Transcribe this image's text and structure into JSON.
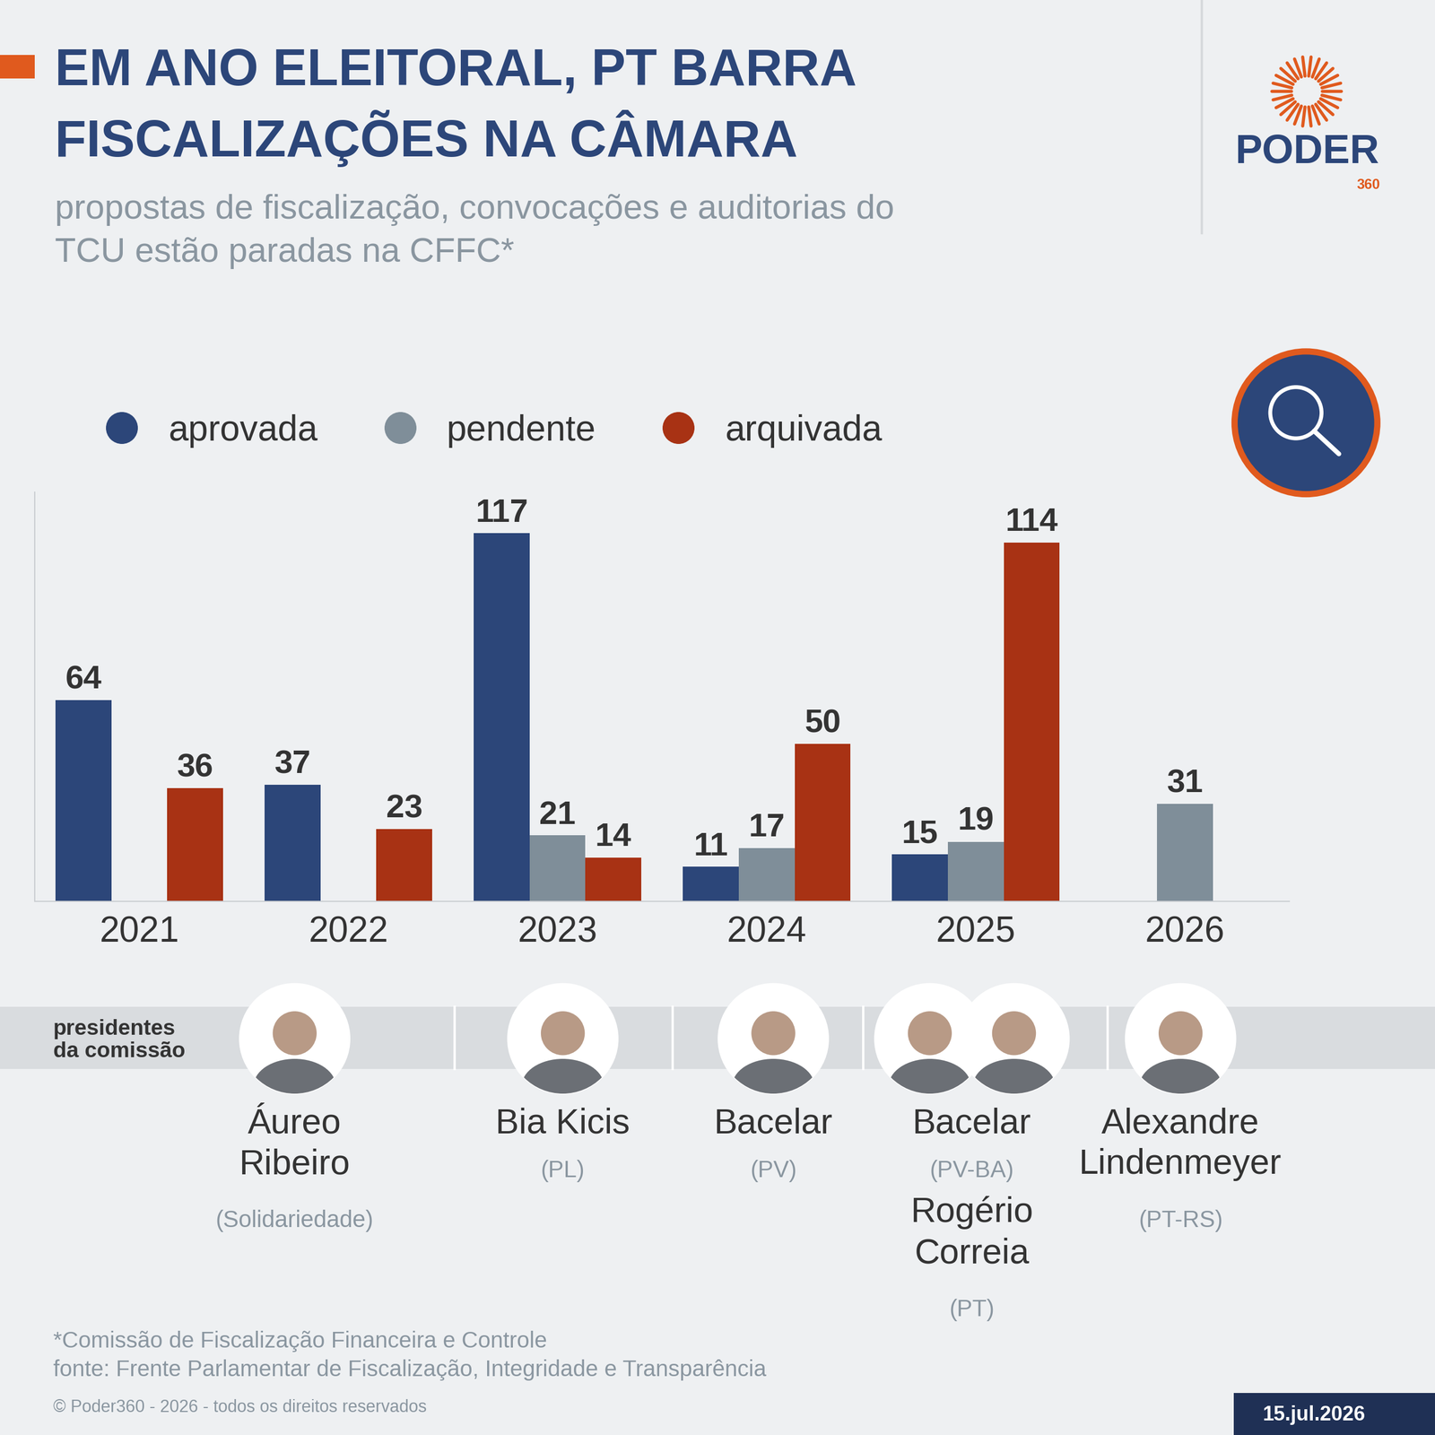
{
  "chart_data": {
    "type": "bar",
    "title": "EM ANO ELEITORAL, PT BARRA FISCALIZAÇÕES NA CÂMARA",
    "subtitle": "propostas de fiscalização, convocações e auditorias do TCU estão paradas na CFFC*",
    "categories": [
      "2021",
      "2022",
      "2023",
      "2024",
      "2025",
      "2026"
    ],
    "series": [
      {
        "name": "aprovada",
        "color": "#2c4679",
        "values": [
          64,
          37,
          117,
          11,
          15,
          null
        ]
      },
      {
        "name": "pendente",
        "color": "#7f8e99",
        "values": [
          null,
          null,
          21,
          17,
          19,
          31
        ]
      },
      {
        "name": "arquivada",
        "color": "#a83214",
        "values": [
          36,
          23,
          14,
          50,
          114,
          null
        ]
      }
    ],
    "ylim": [
      0,
      130
    ],
    "legend": "upper left",
    "data_labels": true,
    "tick_labels": "x",
    "grid": false
  },
  "presidents": {
    "label": "presidentes da comissão",
    "groups": [
      {
        "members": [
          {
            "name": "Áureo Ribeiro",
            "party": "(Solidariedade)"
          }
        ]
      },
      {
        "members": [
          {
            "name": "Bia Kicis",
            "party": "(PL)"
          }
        ]
      },
      {
        "members": [
          {
            "name": "Bacelar",
            "party": "(PV)"
          }
        ]
      },
      {
        "members": [
          {
            "name": "Bacelar",
            "party": "(PV-BA)"
          },
          {
            "name": "Rogério Correia",
            "party": "(PT)"
          }
        ]
      },
      {
        "members": [
          {
            "name": "Alexandre Lindenmeyer",
            "party": "(PT-RS)"
          }
        ]
      }
    ]
  },
  "footer": {
    "note": "*Comissão de Fiscalização Financeira e Controle",
    "source": "fonte: Frente Parlamentar de Fiscalização, Integridade e Transparência",
    "copyright": "© Poder360 - 2026 - todos os direitos reservados",
    "date": "15.jul.2026"
  },
  "logo": {
    "name": "PODER",
    "number": "360"
  }
}
